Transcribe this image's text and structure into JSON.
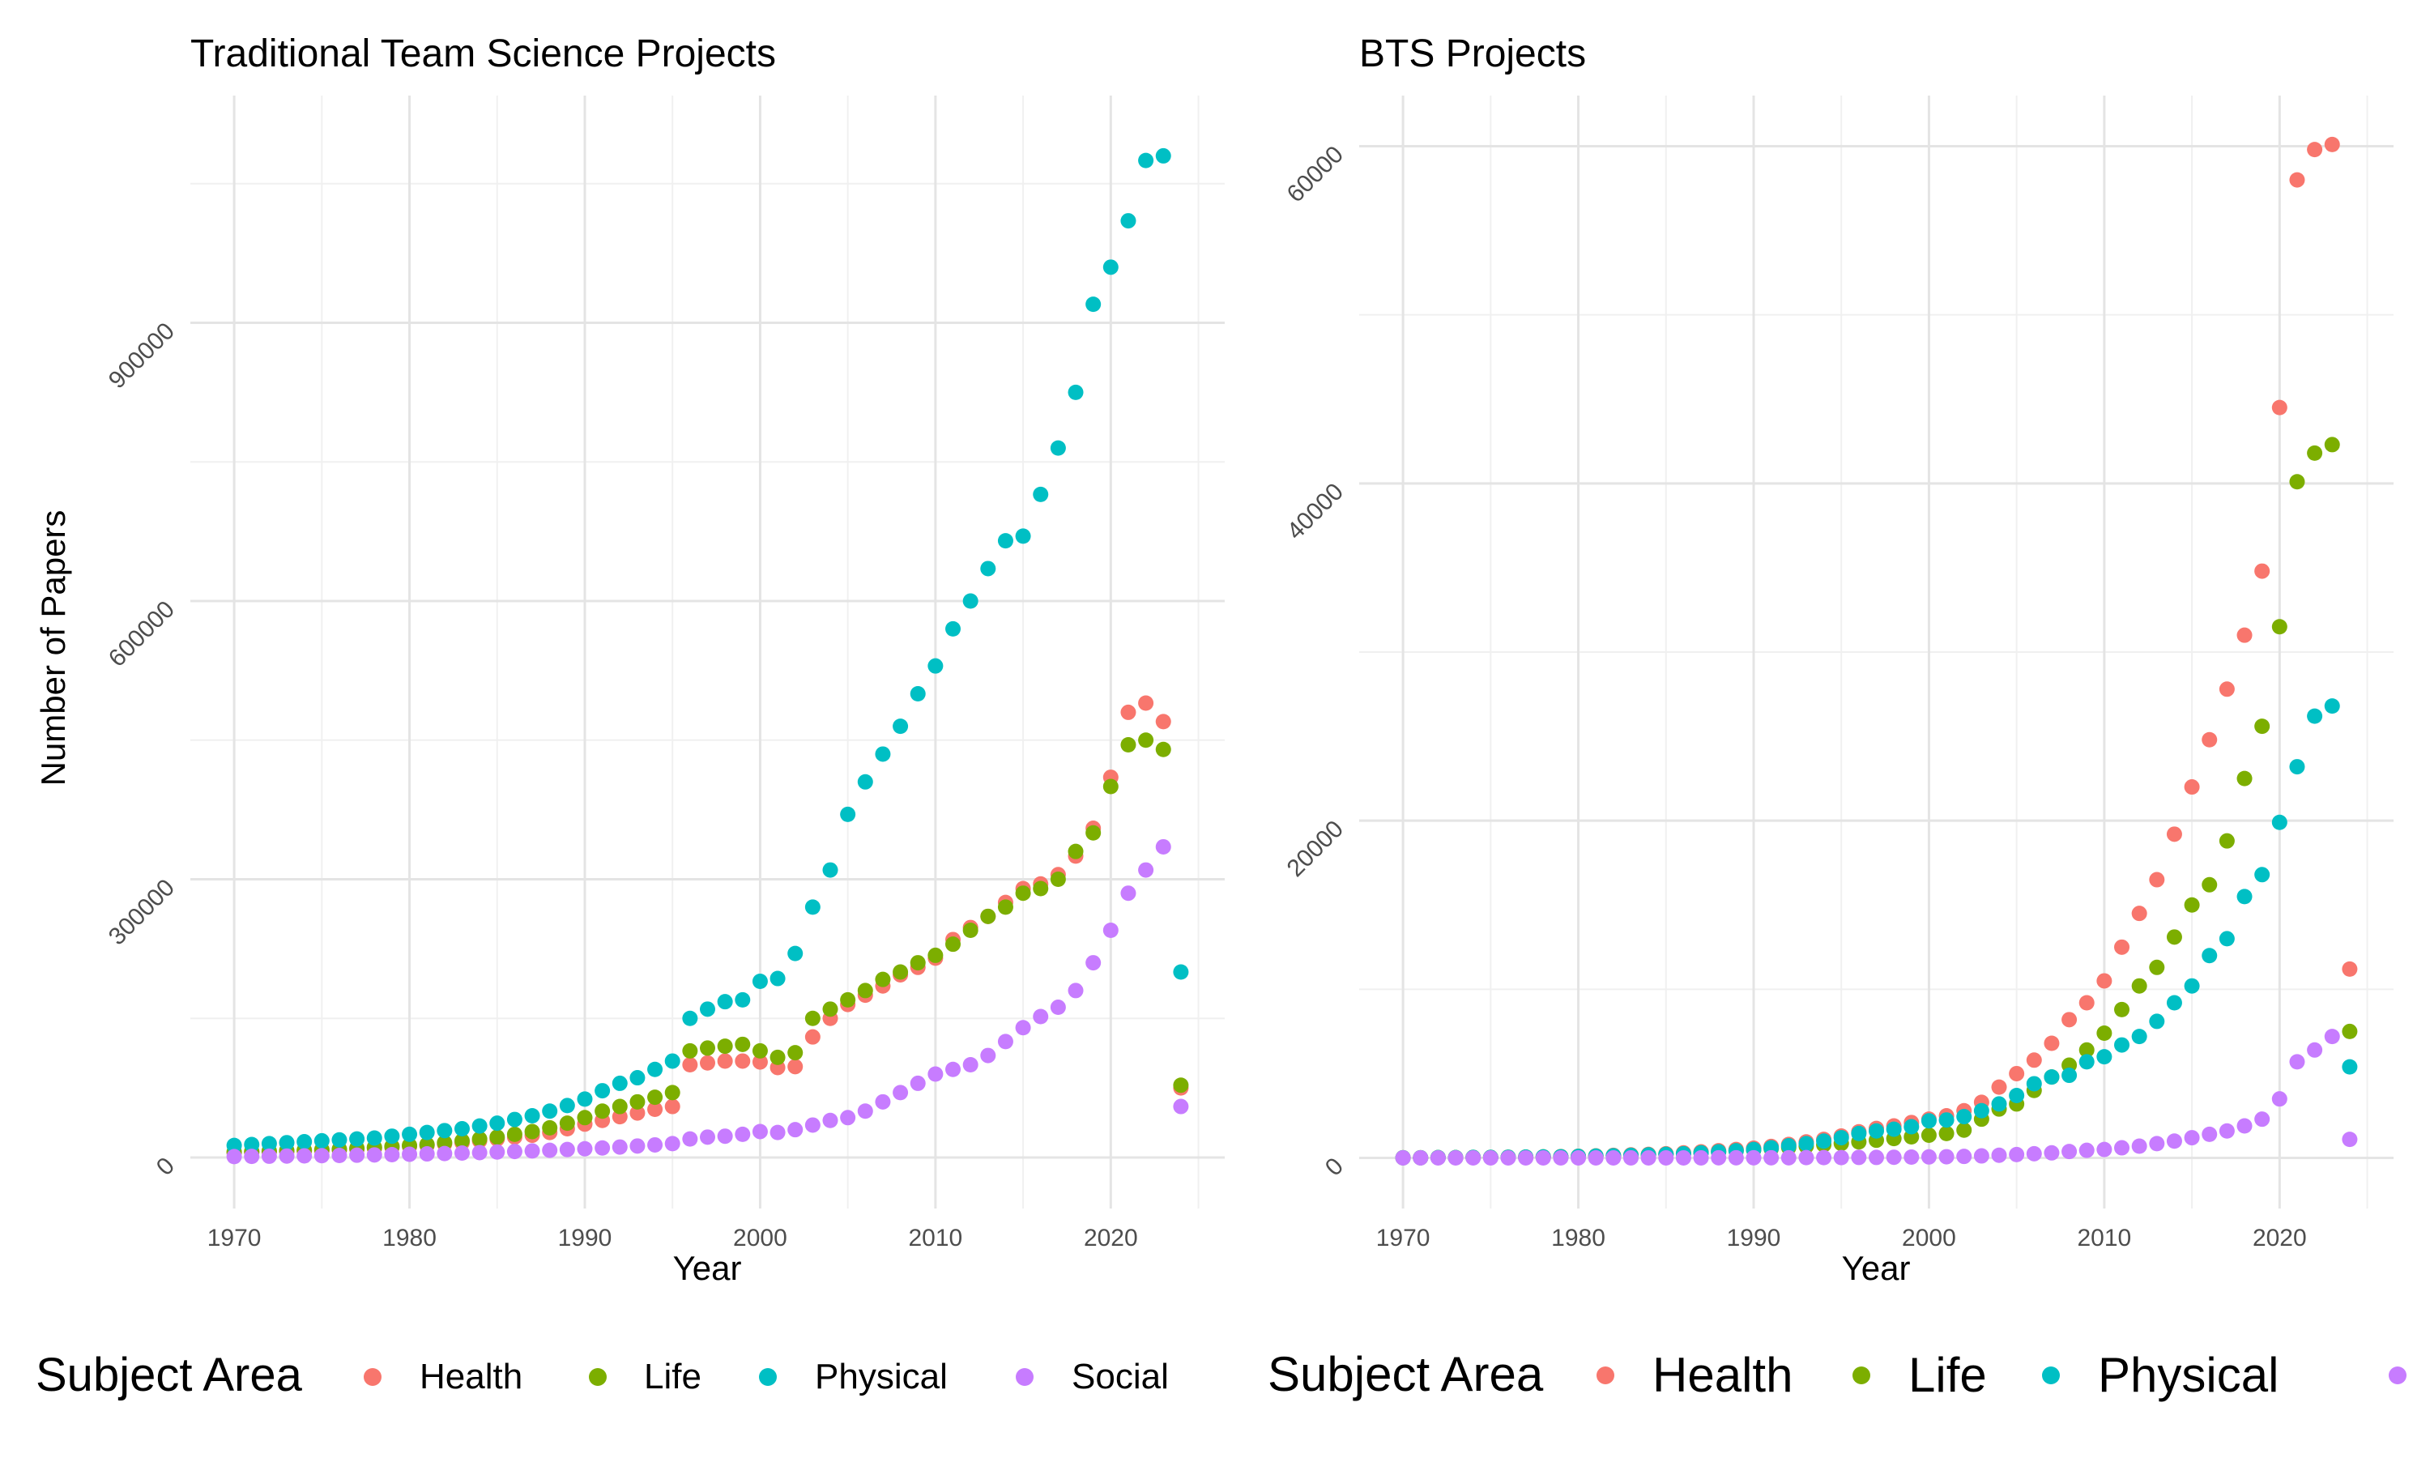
{
  "figure": {
    "legend_title": "Subject Area",
    "legend_labels": [
      "Health",
      "Life",
      "Physical",
      "Social"
    ],
    "colors": {
      "Health": "#F8766D",
      "Life": "#7CAE00",
      "Physical": "#00BFC4",
      "Social": "#C77CFF",
      "grid_major": "#e4e4e4",
      "grid_minor": "#f0f0f0",
      "tick_text": "#4d4d4d",
      "text": "#000000"
    }
  },
  "chart_data": [
    {
      "type": "scatter",
      "title": "Traditional Team Science Projects",
      "xlabel": "Year",
      "ylabel": "Number of Papers",
      "xlim": [
        1967.5,
        2026.5
      ],
      "ylim": [
        -55000,
        1145000
      ],
      "xticks": [
        "1970",
        "1980",
        "1990",
        "2000",
        "2010",
        "2020"
      ],
      "yticks": [
        "0",
        "300000",
        "600000",
        "900000"
      ],
      "grid": true,
      "legend": "bottom",
      "x": [
        1970,
        1971,
        1972,
        1973,
        1974,
        1975,
        1976,
        1977,
        1978,
        1979,
        1980,
        1981,
        1982,
        1983,
        1984,
        1985,
        1986,
        1987,
        1988,
        1989,
        1990,
        1991,
        1992,
        1993,
        1994,
        1995,
        1996,
        1997,
        1998,
        1999,
        2000,
        2001,
        2002,
        2003,
        2004,
        2005,
        2006,
        2007,
        2008,
        2009,
        2010,
        2011,
        2012,
        2013,
        2014,
        2015,
        2016,
        2017,
        2018,
        2019,
        2020,
        2021,
        2022,
        2023,
        2024
      ],
      "series": [
        {
          "name": "Health",
          "values": [
            5000,
            5500,
            6000,
            6500,
            7000,
            7500,
            8000,
            9000,
            10000,
            11000,
            12000,
            13000,
            14500,
            16000,
            18000,
            20000,
            22000,
            24000,
            27000,
            31000,
            36000,
            40000,
            44000,
            48000,
            52000,
            55000,
            100000,
            102000,
            104000,
            104000,
            103000,
            97000,
            98000,
            130000,
            150000,
            165000,
            175000,
            185000,
            197000,
            205000,
            215000,
            235000,
            248000,
            260000,
            275000,
            290000,
            295000,
            305000,
            325000,
            355000,
            410000,
            480000,
            490000,
            470000,
            75000
          ]
        },
        {
          "name": "Life",
          "values": [
            6000,
            6500,
            7000,
            7500,
            8000,
            8500,
            9000,
            10000,
            11000,
            12000,
            13000,
            14000,
            16000,
            18000,
            20000,
            22000,
            25000,
            28000,
            32000,
            37000,
            43000,
            50000,
            55000,
            60000,
            65000,
            70000,
            115000,
            118000,
            120000,
            122000,
            115000,
            108000,
            113000,
            150000,
            160000,
            170000,
            180000,
            192000,
            200000,
            210000,
            218000,
            230000,
            245000,
            260000,
            270000,
            285000,
            290000,
            300000,
            330000,
            350000,
            400000,
            445000,
            450000,
            440000,
            78000
          ]
        },
        {
          "name": "Physical",
          "values": [
            13000,
            14000,
            15000,
            16000,
            17000,
            18000,
            19000,
            20000,
            21000,
            23000,
            25000,
            27000,
            29000,
            31000,
            34000,
            37000,
            41000,
            45000,
            50000,
            56000,
            63000,
            72000,
            80000,
            86000,
            95000,
            104000,
            150000,
            160000,
            168000,
            170000,
            190000,
            193000,
            220000,
            270000,
            310000,
            370000,
            405000,
            435000,
            465000,
            500000,
            530000,
            570000,
            600000,
            635000,
            665000,
            670000,
            715000,
            765000,
            825000,
            920000,
            960000,
            1010000,
            1075000,
            1080000,
            200000
          ]
        },
        {
          "name": "Social",
          "values": [
            1000,
            1200,
            1400,
            1600,
            1800,
            2000,
            2200,
            2500,
            2800,
            3100,
            3500,
            3900,
            4300,
            4800,
            5300,
            5900,
            6500,
            7100,
            7800,
            8600,
            9400,
            10300,
            11300,
            12400,
            13600,
            15000,
            20000,
            22000,
            23000,
            25000,
            28000,
            27000,
            30000,
            35000,
            40000,
            43000,
            50000,
            60000,
            70000,
            80000,
            90000,
            95000,
            100000,
            110000,
            125000,
            140000,
            152000,
            162000,
            180000,
            210000,
            245000,
            285000,
            310000,
            335000,
            55000
          ]
        }
      ]
    },
    {
      "type": "scatter",
      "title": "BTS Projects",
      "xlabel": "Year",
      "ylabel": "",
      "xlim": [
        1967.5,
        2026.5
      ],
      "ylim": [
        -3000,
        63000
      ],
      "xticks": [
        "1970",
        "1980",
        "1990",
        "2000",
        "2010",
        "2020"
      ],
      "yticks": [
        "0",
        "20000",
        "40000",
        "60000"
      ],
      "grid": true,
      "legend": "bottom",
      "x": [
        1970,
        1971,
        1972,
        1973,
        1974,
        1975,
        1976,
        1977,
        1978,
        1979,
        1980,
        1981,
        1982,
        1983,
        1984,
        1985,
        1986,
        1987,
        1988,
        1989,
        1990,
        1991,
        1992,
        1993,
        1994,
        1995,
        1996,
        1997,
        1998,
        1999,
        2000,
        2001,
        2002,
        2003,
        2004,
        2005,
        2006,
        2007,
        2008,
        2009,
        2010,
        2011,
        2012,
        2013,
        2014,
        2015,
        2016,
        2017,
        2018,
        2019,
        2020,
        2021,
        2022,
        2023,
        2024
      ],
      "series": [
        {
          "name": "Health",
          "values": [
            10,
            10,
            20,
            20,
            30,
            30,
            40,
            50,
            60,
            80,
            100,
            120,
            150,
            180,
            210,
            250,
            300,
            360,
            430,
            500,
            580,
            680,
            800,
            950,
            1100,
            1300,
            1550,
            1750,
            1900,
            2100,
            2300,
            2500,
            2800,
            3300,
            4200,
            5000,
            5800,
            6800,
            8200,
            9200,
            10500,
            12500,
            14500,
            16500,
            19200,
            22000,
            24800,
            27800,
            31000,
            34800,
            44500,
            58000,
            59800,
            60100,
            11200
          ]
        },
        {
          "name": "Life",
          "values": [
            10,
            10,
            20,
            20,
            30,
            30,
            40,
            50,
            60,
            70,
            90,
            110,
            130,
            150,
            180,
            210,
            250,
            300,
            360,
            420,
            480,
            550,
            620,
            700,
            780,
            860,
            950,
            1050,
            1150,
            1250,
            1350,
            1450,
            1650,
            2300,
            2900,
            3200,
            4000,
            4800,
            5500,
            6400,
            7400,
            8800,
            10200,
            11300,
            13100,
            15000,
            16200,
            18800,
            22500,
            25600,
            31500,
            40100,
            41800,
            42300,
            7500
          ]
        },
        {
          "name": "Physical",
          "values": [
            10,
            10,
            20,
            20,
            30,
            30,
            40,
            50,
            60,
            70,
            90,
            110,
            130,
            150,
            180,
            210,
            250,
            300,
            360,
            420,
            500,
            600,
            720,
            850,
            1000,
            1200,
            1450,
            1600,
            1700,
            1850,
            2200,
            2250,
            2450,
            2800,
            3200,
            3700,
            4400,
            4800,
            4900,
            5700,
            6000,
            6700,
            7200,
            8100,
            9200,
            10200,
            12000,
            13000,
            15500,
            16800,
            19900,
            23200,
            26200,
            26800,
            5400
          ]
        },
        {
          "name": "Social",
          "values": [
            5,
            5,
            5,
            5,
            5,
            5,
            5,
            5,
            5,
            5,
            5,
            5,
            5,
            5,
            5,
            5,
            5,
            5,
            10,
            10,
            10,
            10,
            10,
            20,
            20,
            20,
            30,
            30,
            40,
            50,
            60,
            70,
            90,
            120,
            160,
            200,
            250,
            300,
            380,
            450,
            500,
            600,
            700,
            850,
            1000,
            1200,
            1400,
            1600,
            1900,
            2300,
            3500,
            5700,
            6400,
            7200,
            1100
          ]
        }
      ]
    }
  ]
}
